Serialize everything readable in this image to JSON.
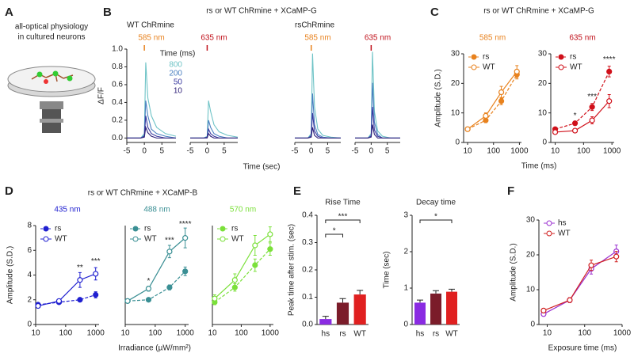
{
  "panel_letters": [
    "A",
    "B",
    "C",
    "D",
    "E",
    "F"
  ],
  "panel_a": {
    "lines": [
      "all-optical physiology",
      "in cultured neurons"
    ]
  },
  "chart_data": [
    {
      "type": "line",
      "title": "rs or WT ChRmine + XCaMP-G",
      "subtitle": "WT ChRmine",
      "wavelength": "585 nm",
      "wavelength_color": "#e8821e",
      "ylabel": "ΔF/F",
      "ylim": [
        -0.05,
        1.0
      ],
      "yticks": [
        {
          "value": 0,
          "label": "0.0"
        },
        {
          "value": 0.2,
          "label": "0.2"
        },
        {
          "value": 0.4,
          "label": "0.4"
        },
        {
          "value": 0.6,
          "label": "0.6"
        },
        {
          "value": 0.8,
          "label": "0.8"
        },
        {
          "value": 1,
          "label": "1.0"
        }
      ],
      "xlim": [
        -5,
        9
      ],
      "xticks": [
        -5,
        0,
        5
      ],
      "spines": [
        "left",
        "bottom"
      ],
      "legend_title": "Time (ms)",
      "x": [
        -5,
        -1,
        0,
        0.4,
        1,
        2,
        3.5,
        6,
        9
      ],
      "series": [
        {
          "name": "800",
          "color": "#6ec3c6",
          "values": [
            0,
            0,
            0.05,
            0.85,
            0.45,
            0.25,
            0.12,
            0.05,
            0.02
          ]
        },
        {
          "name": "200",
          "color": "#4a7fc0",
          "values": [
            0,
            0,
            0.03,
            0.42,
            0.25,
            0.1,
            0.05,
            0.02,
            0
          ]
        },
        {
          "name": "50",
          "color": "#3a3aa0",
          "values": [
            0,
            0,
            0.02,
            0.25,
            0.12,
            0.05,
            0.02,
            0,
            0
          ]
        },
        {
          "name": "10",
          "color": "#2e1f78",
          "values": [
            0,
            0,
            0.01,
            0.12,
            0.06,
            0.02,
            0,
            0,
            0
          ]
        }
      ]
    },
    {
      "type": "line",
      "wavelength": "635 nm",
      "wavelength_color": "#c0101a",
      "ylim": [
        -0.05,
        1.0
      ],
      "xlim": [
        -5,
        9
      ],
      "xticks": [
        -5,
        0,
        5
      ],
      "spines": [
        "bottom"
      ],
      "x": [
        -5,
        -1,
        0,
        0.4,
        1,
        2,
        3.5,
        6,
        9
      ],
      "series": [
        {
          "color": "#6ec3c6",
          "values": [
            0,
            0,
            0.02,
            0.42,
            0.3,
            0.15,
            0.07,
            0.03,
            0.01
          ]
        },
        {
          "color": "#4a7fc0",
          "values": [
            0,
            0,
            0.01,
            0.2,
            0.12,
            0.05,
            0.02,
            0,
            0
          ]
        },
        {
          "color": "#3a3aa0",
          "values": [
            0,
            0,
            0.01,
            0.1,
            0.05,
            0.02,
            0,
            0,
            0
          ]
        },
        {
          "color": "#2e1f78",
          "values": [
            0,
            0,
            0,
            0.05,
            0.02,
            0,
            0,
            0,
            0
          ]
        }
      ]
    },
    {
      "type": "line",
      "subtitle": "rsChRmine",
      "wavelength": "585 nm",
      "wavelength_color": "#e8821e",
      "xlabel": "Time (sec)",
      "ylim": [
        -0.05,
        1.0
      ],
      "xlim": [
        -5,
        9
      ],
      "xticks": [
        -5,
        0,
        5
      ],
      "spines": [
        "bottom"
      ],
      "x": [
        -5,
        -1,
        0,
        0.4,
        1,
        2,
        3.5,
        6,
        9
      ],
      "series": [
        {
          "color": "#6ec3c6",
          "values": [
            0,
            0,
            0.05,
            0.95,
            0.35,
            0.1,
            0.03,
            0.01,
            0
          ]
        },
        {
          "color": "#4a7fc0",
          "values": [
            0,
            0,
            0.03,
            0.5,
            0.15,
            0.04,
            0.01,
            0,
            0
          ]
        },
        {
          "color": "#3a3aa0",
          "values": [
            0,
            0,
            0.02,
            0.28,
            0.08,
            0.02,
            0,
            0,
            0
          ]
        },
        {
          "color": "#2e1f78",
          "values": [
            0,
            0,
            0.01,
            0.12,
            0.03,
            0,
            0,
            0,
            0
          ]
        }
      ]
    },
    {
      "type": "line",
      "wavelength": "635 nm",
      "wavelength_color": "#c0101a",
      "ylim": [
        -0.05,
        1.0
      ],
      "xlim": [
        -5,
        9
      ],
      "xticks": [
        -5,
        0,
        5
      ],
      "spines": [
        "bottom"
      ],
      "x": [
        -5,
        -1,
        0,
        0.4,
        1,
        2,
        3.5,
        6,
        9
      ],
      "series": [
        {
          "color": "#6ec3c6",
          "values": [
            0,
            0,
            0.05,
            0.97,
            0.3,
            0.08,
            0.02,
            0,
            0
          ]
        },
        {
          "color": "#4a7fc0",
          "values": [
            0,
            0,
            0.03,
            0.62,
            0.18,
            0.04,
            0,
            0,
            0
          ]
        },
        {
          "color": "#3a3aa0",
          "values": [
            0,
            0,
            0.02,
            0.35,
            0.09,
            0.02,
            0,
            0,
            0
          ]
        },
        {
          "color": "#2e1f78",
          "values": [
            0,
            0,
            0.01,
            0.15,
            0.04,
            0,
            0,
            0,
            0
          ]
        }
      ]
    },
    {
      "type": "line",
      "title": "rs or WT ChRmine + XCaMP-G",
      "wavelength": "585 nm",
      "wavelength_color": "#e8821e",
      "ylabel": "Amplitude (S.D.)",
      "ylim": [
        0,
        30
      ],
      "yticks": [
        0,
        10,
        20,
        30
      ],
      "xscale": "log",
      "xlim": [
        7,
        1200
      ],
      "xticks": [
        10,
        100,
        1000
      ],
      "spines": [
        "left",
        "bottom"
      ],
      "markers": true,
      "x": [
        10,
        50,
        200,
        800
      ],
      "series": [
        {
          "name": "rs",
          "color": "#e8821e",
          "dashed": true,
          "filled": true,
          "values": [
            4.5,
            7.5,
            14,
            23
          ],
          "errors": [
            0.6,
            0.8,
            1.2,
            1.5
          ]
        },
        {
          "name": "WT",
          "color": "#e8821e",
          "filled": false,
          "values": [
            4.5,
            9,
            17,
            24
          ],
          "errors": [
            0.6,
            1,
            2,
            2
          ]
        }
      ]
    },
    {
      "type": "line",
      "wavelength": "635 nm",
      "wavelength_color": "#c0101a",
      "xlabel": "Time (ms)",
      "ylim": [
        0,
        30
      ],
      "yticks": [
        0,
        10,
        20,
        30
      ],
      "xscale": "log",
      "xlim": [
        7,
        1200
      ],
      "xticks": [
        10,
        100,
        1000
      ],
      "spines": [
        "left",
        "bottom"
      ],
      "markers": true,
      "x": [
        10,
        50,
        200,
        800
      ],
      "series": [
        {
          "name": "rs",
          "color": "#d0101a",
          "dashed": true,
          "filled": true,
          "values": [
            4.5,
            6.5,
            12,
            24
          ],
          "errors": [
            0.5,
            0.7,
            1.2,
            1.8
          ]
        },
        {
          "name": "WT",
          "color": "#d0101a",
          "filled": false,
          "values": [
            3.5,
            4,
            7.5,
            14
          ],
          "errors": [
            0.4,
            0.5,
            1.2,
            2.2
          ]
        }
      ],
      "annotations": [
        {
          "x": 50,
          "y": 9,
          "text": "*"
        },
        {
          "x": 200,
          "y": 15.5,
          "text": "***"
        },
        {
          "x": 800,
          "y": 28,
          "text": "****"
        }
      ]
    },
    {
      "type": "line",
      "title": "rs or WT ChRmine + XCaMP-B",
      "wavelength": "435 nm",
      "wavelength_color": "#2020d0",
      "ylabel": "Amplitude (S.D.)",
      "ylim": [
        0,
        8
      ],
      "yticks": [
        0,
        2,
        4,
        6,
        8
      ],
      "xscale": "log",
      "xlim": [
        10,
        1300
      ],
      "xticks": [
        10,
        100,
        1000
      ],
      "spines": [
        "left",
        "bottom"
      ],
      "markers": true,
      "x": [
        12,
        60,
        300,
        1000
      ],
      "series": [
        {
          "name": "rs",
          "color": "#2020d0",
          "dashed": true,
          "filled": true,
          "values": [
            1.6,
            1.8,
            2.0,
            2.4
          ],
          "errors": [
            0.1,
            0.1,
            0.15,
            0.25
          ]
        },
        {
          "name": "WT",
          "color": "#2020d0",
          "filled": false,
          "values": [
            1.5,
            1.9,
            3.6,
            4.1
          ],
          "errors": [
            0.1,
            0.15,
            0.6,
            0.5
          ]
        }
      ],
      "annotations": [
        {
          "x": 300,
          "y": 4.6,
          "text": "**"
        },
        {
          "x": 1000,
          "y": 5.1,
          "text": "***"
        }
      ]
    },
    {
      "type": "line",
      "wavelength": "488 nm",
      "wavelength_color": "#3a8f94",
      "xlabel": "Irradiance (µW/mm²)",
      "ylim": [
        0,
        8
      ],
      "xscale": "log",
      "xlim": [
        10,
        1300
      ],
      "xticks": [
        10,
        100,
        1000
      ],
      "spines": [
        "left",
        "bottom"
      ],
      "markers": true,
      "x": [
        12,
        60,
        300,
        1000
      ],
      "series": [
        {
          "name": "rs",
          "color": "#3a8f94",
          "dashed": true,
          "filled": true,
          "values": [
            1.9,
            2.0,
            3.0,
            4.3
          ],
          "errors": [
            0.1,
            0.1,
            0.2,
            0.35
          ]
        },
        {
          "name": "WT",
          "color": "#3a8f94",
          "filled": false,
          "values": [
            1.9,
            2.9,
            5.9,
            7.0
          ],
          "errors": [
            0.1,
            0.2,
            0.5,
            0.8
          ]
        }
      ],
      "annotations": [
        {
          "x": 60,
          "y": 3.5,
          "text": "*"
        },
        {
          "x": 300,
          "y": 6.8,
          "text": "***"
        },
        {
          "x": 1000,
          "y": 8.1,
          "text": "****"
        }
      ]
    },
    {
      "type": "line",
      "wavelength": "570 nm",
      "wavelength_color": "#7be03a",
      "ylim": [
        0,
        8
      ],
      "xscale": "log",
      "xlim": [
        10,
        1300
      ],
      "xticks": [
        10,
        100,
        1000
      ],
      "spines": [
        "left",
        "bottom"
      ],
      "markers": true,
      "x": [
        12,
        60,
        300,
        1000
      ],
      "series": [
        {
          "name": "rs",
          "color": "#7be03a",
          "dashed": true,
          "filled": true,
          "values": [
            1.8,
            3.0,
            4.8,
            6.1
          ],
          "errors": [
            0.2,
            0.3,
            0.5,
            0.5
          ]
        },
        {
          "name": "WT",
          "color": "#7be03a",
          "filled": false,
          "values": [
            2.1,
            3.6,
            6.4,
            7.3
          ],
          "errors": [
            0.3,
            0.5,
            0.8,
            0.6
          ]
        }
      ]
    },
    {
      "type": "bar",
      "title": "Rise Time",
      "ylabel": "Peak time after stim. (sec)",
      "ylim": [
        0,
        0.4
      ],
      "yticks": [
        {
          "value": 0,
          "label": "0.0"
        },
        {
          "value": 0.1,
          "label": "0.1"
        },
        {
          "value": 0.2,
          "label": "0.2"
        },
        {
          "value": 0.3,
          "label": "0.3"
        },
        {
          "value": 0.4,
          "label": "0.4"
        }
      ],
      "spines": [
        "left",
        "bottom"
      ],
      "categories": [
        "hs",
        "rs",
        "WT"
      ],
      "colors": [
        "#8a2be2",
        "#7b1c2a",
        "#e02020"
      ],
      "values": [
        0.02,
        0.08,
        0.11
      ],
      "errors": [
        0.01,
        0.015,
        0.015
      ],
      "comparisons": [
        {
          "pair": [
            "hs",
            "WT"
          ],
          "text": "***"
        },
        {
          "pair": [
            "hs",
            "rs"
          ],
          "text": "*"
        }
      ]
    },
    {
      "type": "bar",
      "title": "Decay time",
      "ylabel": "Time (sec)",
      "ylim": [
        0,
        3
      ],
      "yticks": [
        0,
        1,
        2,
        3
      ],
      "spines": [
        "left",
        "bottom"
      ],
      "categories": [
        "hs",
        "rs",
        "WT"
      ],
      "colors": [
        "#8a2be2",
        "#7b1c2a",
        "#e02020"
      ],
      "values": [
        0.6,
        0.85,
        0.9
      ],
      "errors": [
        0.07,
        0.08,
        0.07
      ],
      "comparisons": [
        {
          "pair": [
            "hs",
            "WT"
          ],
          "text": "*"
        }
      ]
    },
    {
      "type": "line",
      "ylabel": "Amplitude (S.D.)",
      "xlabel": "Exposure time (ms)",
      "ylim": [
        0,
        30
      ],
      "yticks": [
        0,
        10,
        20,
        30
      ],
      "xscale": "log",
      "xlim": [
        6,
        1000
      ],
      "xticks": [
        10,
        100,
        1000
      ],
      "spines": [
        "left",
        "bottom"
      ],
      "markers": true,
      "x": [
        8,
        40,
        150,
        700
      ],
      "series": [
        {
          "name": "hs",
          "color": "#9b30d0",
          "filled": false,
          "values": [
            3,
            7,
            16,
            21
          ],
          "errors": [
            0.6,
            0.7,
            1.5,
            1.8
          ]
        },
        {
          "name": "WT",
          "color": "#d02020",
          "filled": false,
          "values": [
            4,
            7,
            17,
            19.5
          ],
          "errors": [
            0.6,
            0.7,
            1.5,
            1.5
          ]
        }
      ]
    }
  ]
}
